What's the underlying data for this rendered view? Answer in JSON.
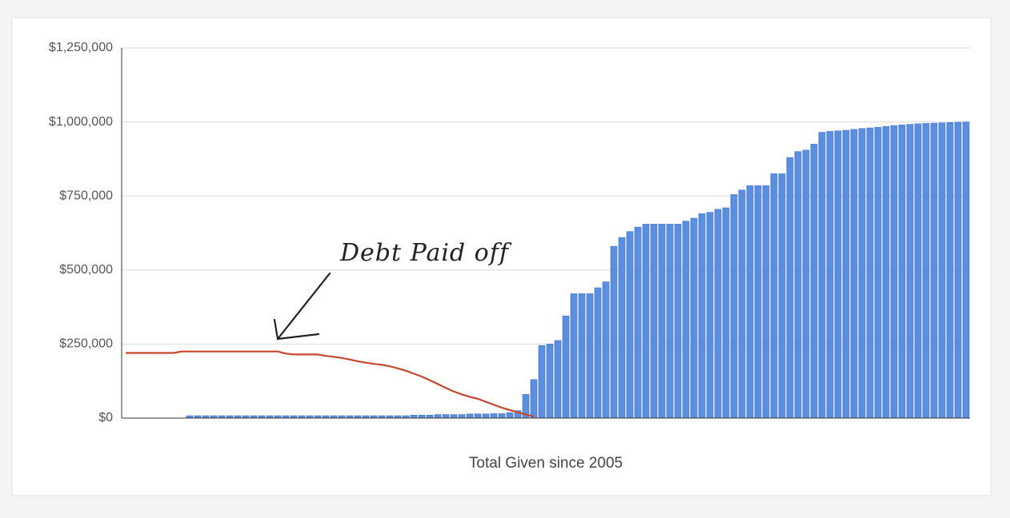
{
  "chart_data": {
    "type": "bar",
    "xlabel": "Total Given since 2005",
    "annotation": "Debt Paid off",
    "ylim": [
      0,
      1250000
    ],
    "yticks": [
      {
        "value": 0,
        "label": "$0"
      },
      {
        "value": 250000,
        "label": "$250,000"
      },
      {
        "value": 500000,
        "label": "$500,000"
      },
      {
        "value": 750000,
        "label": "$750,000"
      },
      {
        "value": 1000000,
        "label": "$1,000,000"
      },
      {
        "value": 1250000,
        "label": "$1,250,000"
      }
    ],
    "grid": true,
    "categories": [
      null,
      null,
      null,
      null,
      null,
      null,
      null,
      null,
      null,
      null,
      null,
      null,
      null,
      null,
      null,
      null,
      null,
      null,
      null,
      null,
      null,
      null,
      null,
      null,
      null,
      null,
      null,
      null,
      null,
      null,
      null,
      null,
      null,
      null,
      null,
      null,
      null,
      null,
      null,
      null,
      null,
      null,
      null,
      null,
      null,
      null,
      null,
      null,
      null,
      null,
      null,
      null,
      null,
      null,
      null,
      null,
      null,
      null,
      null,
      null,
      null,
      null,
      null,
      null,
      null,
      null,
      null,
      null,
      null,
      null,
      null,
      null,
      null,
      null,
      null,
      null,
      null,
      null,
      null,
      null,
      null,
      null,
      null,
      null,
      null,
      null,
      null,
      null,
      null,
      null,
      null,
      null,
      null,
      null,
      null,
      null,
      null,
      null,
      null,
      null,
      null,
      null,
      null,
      null,
      null,
      null
    ],
    "series": [
      {
        "type": "bar",
        "color": "#5a8ee2",
        "values": [
          0,
          0,
          0,
          0,
          0,
          0,
          0,
          0,
          8000,
          8000,
          8000,
          8000,
          8000,
          8000,
          8000,
          8000,
          8000,
          8000,
          8000,
          8000,
          8000,
          8000,
          8000,
          8000,
          8000,
          8000,
          8000,
          8000,
          8000,
          8000,
          8000,
          8000,
          8000,
          8000,
          8000,
          8000,
          10000,
          10000,
          10000,
          12000,
          12000,
          12000,
          12000,
          14000,
          14000,
          14000,
          15000,
          15000,
          18000,
          25000,
          80000,
          130000,
          245000,
          250000,
          262000,
          345000,
          420000,
          420000,
          420000,
          440000,
          460000,
          580000,
          610000,
          630000,
          645000,
          655000,
          655000,
          655000,
          655000,
          655000,
          665000,
          675000,
          690000,
          695000,
          705000,
          710000,
          755000,
          770000,
          785000,
          785000,
          785000,
          825000,
          825000,
          880000,
          900000,
          905000,
          925000,
          965000,
          968000,
          970000,
          972000,
          975000,
          978000,
          980000,
          982000,
          985000,
          988000,
          990000,
          992000,
          994000,
          995000,
          996000,
          997000,
          998000,
          999000,
          1000000
        ]
      },
      {
        "type": "line",
        "color": "#c8452e",
        "values": [
          220000,
          220000,
          220000,
          220000,
          220000,
          220000,
          220000,
          225000,
          225000,
          225000,
          225000,
          225000,
          225000,
          225000,
          225000,
          225000,
          225000,
          225000,
          225000,
          225000,
          218000,
          215000,
          215000,
          215000,
          215000,
          210000,
          207000,
          203000,
          198000,
          192000,
          187000,
          183000,
          180000,
          175000,
          168000,
          160000,
          150000,
          140000,
          128000,
          115000,
          102000,
          90000,
          80000,
          72000,
          65000,
          55000,
          45000,
          35000,
          27000,
          20000,
          12000,
          5000,
          null,
          null,
          null,
          null,
          null,
          null,
          null,
          null,
          null,
          null,
          null,
          null,
          null,
          null,
          null,
          null,
          null,
          null,
          null,
          null,
          null,
          null,
          null,
          null,
          null,
          null,
          null,
          null,
          null,
          null,
          null,
          null,
          null,
          null,
          null,
          null,
          null,
          null,
          null,
          null,
          null,
          null,
          null,
          null,
          null,
          null,
          null,
          null,
          null,
          null,
          null,
          null,
          null,
          null
        ]
      }
    ]
  }
}
